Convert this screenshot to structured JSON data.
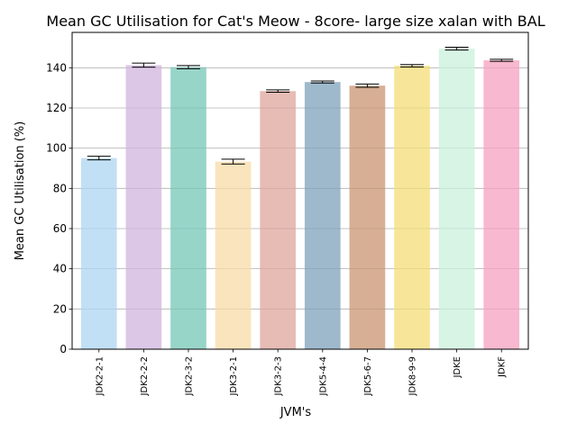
{
  "chart_data": {
    "type": "bar",
    "title": "Mean GC Utilisation for Cat's Meow - 8core- large size xalan with BAL",
    "xlabel": "JVM's",
    "ylabel": "Mean GC Utilisation (%)",
    "ylim": [
      0,
      157.6
    ],
    "yticks": [
      0,
      20,
      40,
      60,
      80,
      100,
      120,
      140
    ],
    "grid": "horizontal",
    "categories": [
      "JDK2-2-1",
      "JDK2-2-2",
      "JDK2-3-2",
      "JDK3-2-1",
      "JDK3-2-3",
      "JDK5-4-4",
      "JDK5-6-7",
      "JDK8-9-9",
      "JDKE",
      "JDKF"
    ],
    "values": [
      95.1,
      141.3,
      140.3,
      93.3,
      128.4,
      132.9,
      131.1,
      141.0,
      149.5,
      143.7
    ],
    "errors": [
      0.9,
      1.0,
      0.8,
      1.2,
      0.6,
      0.5,
      0.8,
      0.6,
      0.7,
      0.5
    ],
    "colors": [
      "#aed6f1",
      "#d2b4de",
      "#76c7b7",
      "#f8dba7",
      "#dea59c",
      "#7fa2bb",
      "#c99472",
      "#f4dd77",
      "#c9f0dc",
      "#f5a0bf"
    ],
    "bar_opacity": 0.75
  }
}
